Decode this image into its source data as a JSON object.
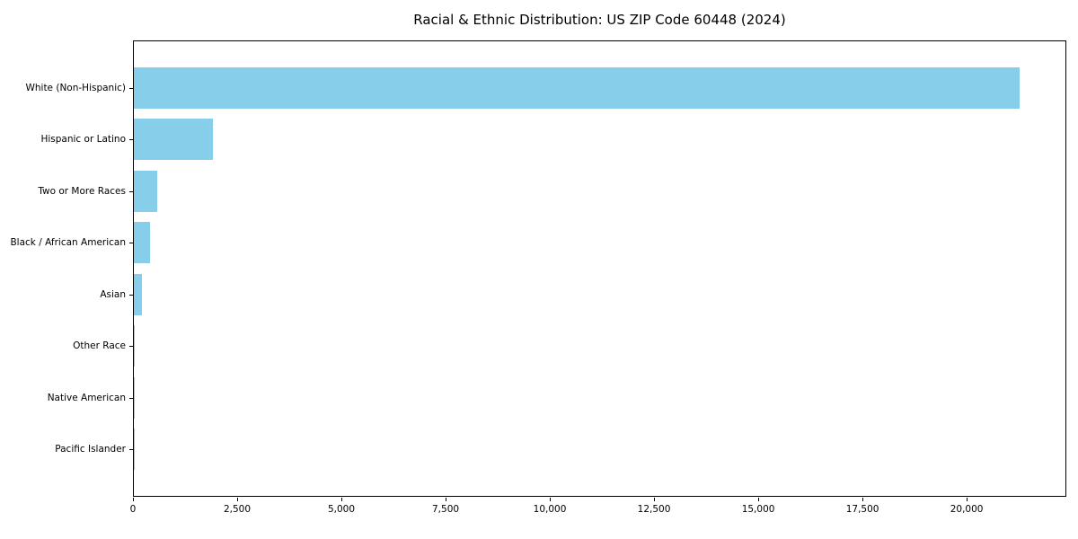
{
  "chart_data": {
    "type": "bar",
    "orientation": "horizontal",
    "title": "Racial & Ethnic Distribution: US ZIP Code 60448 (2024)",
    "categories": [
      "White (Non-Hispanic)",
      "Hispanic or Latino",
      "Two or More Races",
      "Black / African American",
      "Asian",
      "Other Race",
      "Native American",
      "Pacific Islander"
    ],
    "values": [
      21290,
      1910,
      560,
      390,
      190,
      30,
      12,
      4
    ],
    "xlabel": "",
    "ylabel": "",
    "xlim": [
      0,
      22390
    ],
    "xticks": [
      0,
      2500,
      5000,
      7500,
      10000,
      12500,
      15000,
      17500,
      20000
    ],
    "xtick_labels": [
      "0",
      "2,500",
      "5,000",
      "7,500",
      "10,000",
      "12,500",
      "15,000",
      "17,500",
      "20,000"
    ],
    "bar_color": "#87CEEB",
    "spine_color": "#000000",
    "background_color": "#ffffff",
    "grid": false,
    "legend": null
  }
}
